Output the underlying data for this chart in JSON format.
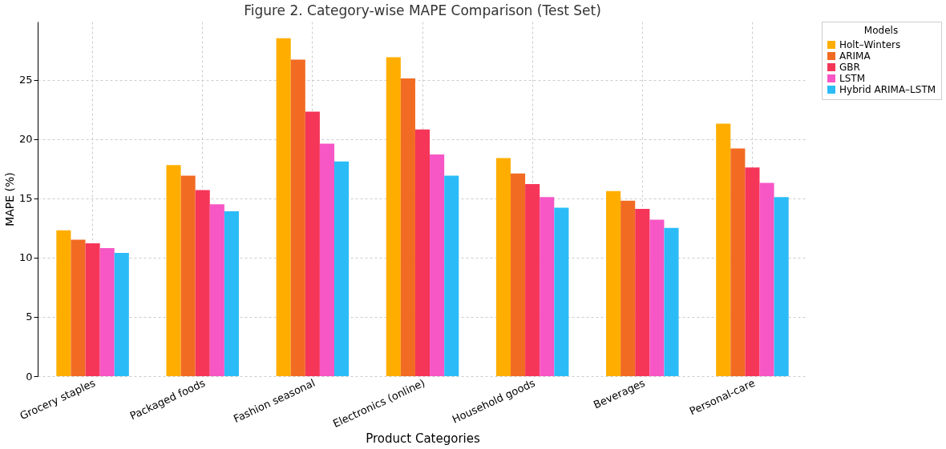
{
  "chart_data": {
    "type": "bar",
    "title": "Figure 2. Category-wise MAPE Comparison (Test Set)",
    "xlabel": "Product Categories",
    "ylabel": "MAPE (%)",
    "legend_title": "Models",
    "categories": [
      "Grocery staples",
      "Packaged foods",
      "Fashion seasonal",
      "Electronics (online)",
      "Household goods",
      "Beverages",
      "Personal-care"
    ],
    "series": [
      {
        "name": "Holt–Winters",
        "color": "#ffae00",
        "values": [
          12.3,
          17.8,
          28.5,
          26.9,
          18.4,
          15.6,
          21.3
        ]
      },
      {
        "name": "ARIMA",
        "color": "#f26b22",
        "values": [
          11.5,
          16.9,
          26.7,
          25.1,
          17.1,
          14.8,
          19.2
        ]
      },
      {
        "name": "GBR",
        "color": "#f53659",
        "values": [
          11.2,
          15.7,
          22.3,
          20.8,
          16.2,
          14.1,
          17.6
        ]
      },
      {
        "name": "LSTM",
        "color": "#f756c5",
        "values": [
          10.8,
          14.5,
          19.6,
          18.7,
          15.1,
          13.2,
          16.3
        ]
      },
      {
        "name": "Hybrid ARIMA–LSTM",
        "color": "#2bbcf8",
        "values": [
          10.4,
          13.9,
          18.1,
          16.9,
          14.2,
          12.5,
          15.1
        ]
      }
    ],
    "ylim": [
      0,
      29.9
    ],
    "yticks": [
      0,
      5,
      10,
      15,
      20,
      25
    ],
    "grid": true,
    "legend": "top right"
  }
}
